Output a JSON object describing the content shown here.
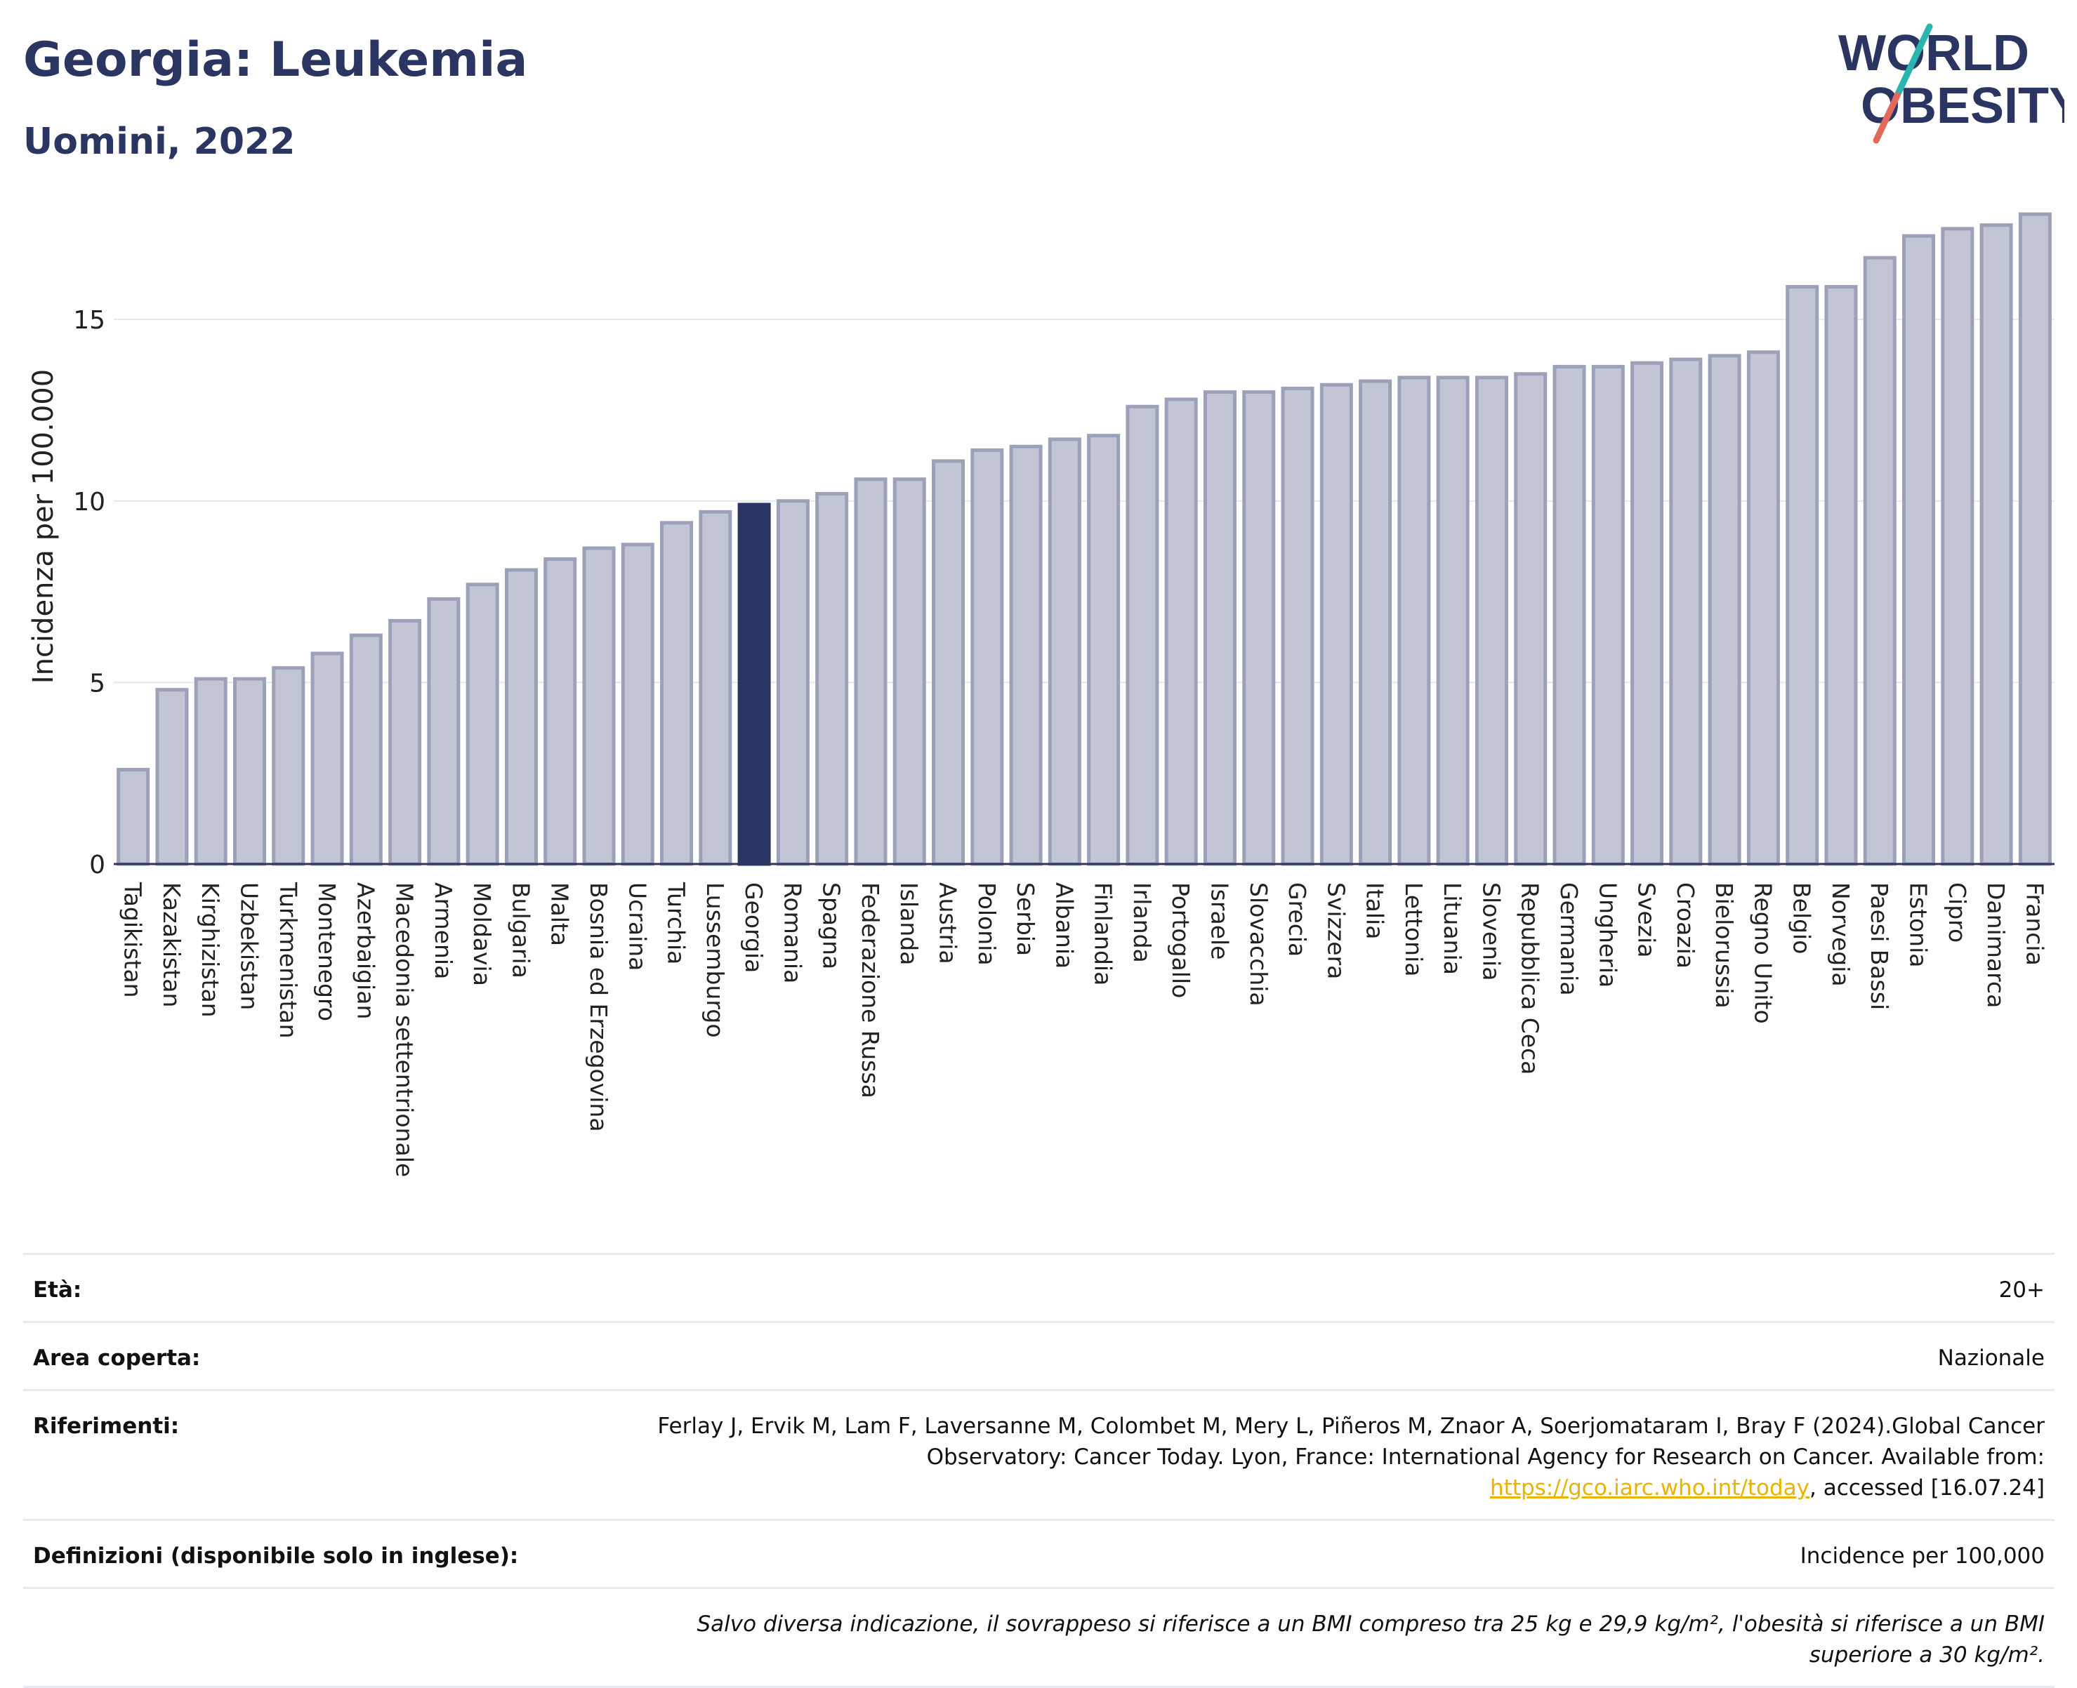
{
  "header": {
    "title": "Georgia: Leukemia",
    "subtitle": "Uomini, 2022"
  },
  "logo": {
    "line1": "WORLD",
    "line2": "OBESITY",
    "accent_colors": [
      "#2bb5b0",
      "#e26a5a"
    ]
  },
  "colors": {
    "bar": "#c2c6d4",
    "bar_stroke": "#9ba1b9",
    "highlight": "#2b3561",
    "text": "#2b3561",
    "grid": "#e4e7ee"
  },
  "chart_data": {
    "type": "bar",
    "title": "",
    "xlabel": "",
    "ylabel": "Incidenza per 100.000",
    "ylim": [
      0,
      18
    ],
    "yticks": [
      0,
      5,
      10,
      15
    ],
    "grid": true,
    "highlight": "Georgia",
    "categories": [
      "Tagikistan",
      "Kazakistan",
      "Kirghizistan",
      "Uzbekistan",
      "Turkmenistan",
      "Montenegro",
      "Azerbaigian",
      "Macedonia settentrionale",
      "Armenia",
      "Moldavia",
      "Bulgaria",
      "Malta",
      "Bosnia ed Erzegovina",
      "Ucraina",
      "Turchia",
      "Lussemburgo",
      "Georgia",
      "Romania",
      "Spagna",
      "Federazione Russa",
      "Islanda",
      "Austria",
      "Polonia",
      "Serbia",
      "Albania",
      "Finlandia",
      "Irlanda",
      "Portogallo",
      "Israele",
      "Slovacchia",
      "Grecia",
      "Svizzera",
      "Italia",
      "Lettonia",
      "Lituania",
      "Slovenia",
      "Repubblica Ceca",
      "Germania",
      "Ungheria",
      "Svezia",
      "Croazia",
      "Bielorussia",
      "Regno Unito",
      "Belgio",
      "Norvegia",
      "Paesi Bassi",
      "Estonia",
      "Cipro",
      "Danimarca",
      "Francia"
    ],
    "values": [
      2.6,
      4.8,
      5.1,
      5.1,
      5.4,
      5.8,
      6.3,
      6.7,
      7.3,
      7.7,
      8.1,
      8.4,
      8.7,
      8.8,
      9.4,
      9.7,
      9.9,
      10.0,
      10.2,
      10.6,
      10.6,
      11.1,
      11.4,
      11.5,
      11.7,
      11.8,
      12.6,
      12.8,
      13.0,
      13.0,
      13.1,
      13.2,
      13.3,
      13.4,
      13.4,
      13.4,
      13.5,
      13.7,
      13.7,
      13.8,
      13.9,
      14.0,
      14.1,
      15.9,
      15.9,
      16.7,
      17.3,
      17.5,
      17.6,
      17.9
    ]
  },
  "info": {
    "age_label": "Età:",
    "age_value": "20+",
    "area_label": "Area coperta:",
    "area_value": "Nazionale",
    "refs_label": "Riferimenti:",
    "refs_text": "Ferlay J, Ervik M, Lam F, Laversanne M, Colombet M, Mery L, Piñeros M, Znaor A, Soerjomataram I, Bray F (2024).Global Cancer Observatory: Cancer Today. Lyon, France: International Agency for Research on Cancer. Available from:",
    "refs_link": "https://gco.iarc.who.int/today",
    "refs_tail": ", accessed [16.07.24]",
    "defs_label": "Definizioni (disponibile solo in inglese):",
    "defs_value": "Incidence per 100,000",
    "note": "Salvo diversa indicazione, il sovrappeso si riferisce a un BMI compreso tra 25 kg e 29,9 kg/m², l'obesità si riferisce a un BMI superiore a 30 kg/m²."
  }
}
